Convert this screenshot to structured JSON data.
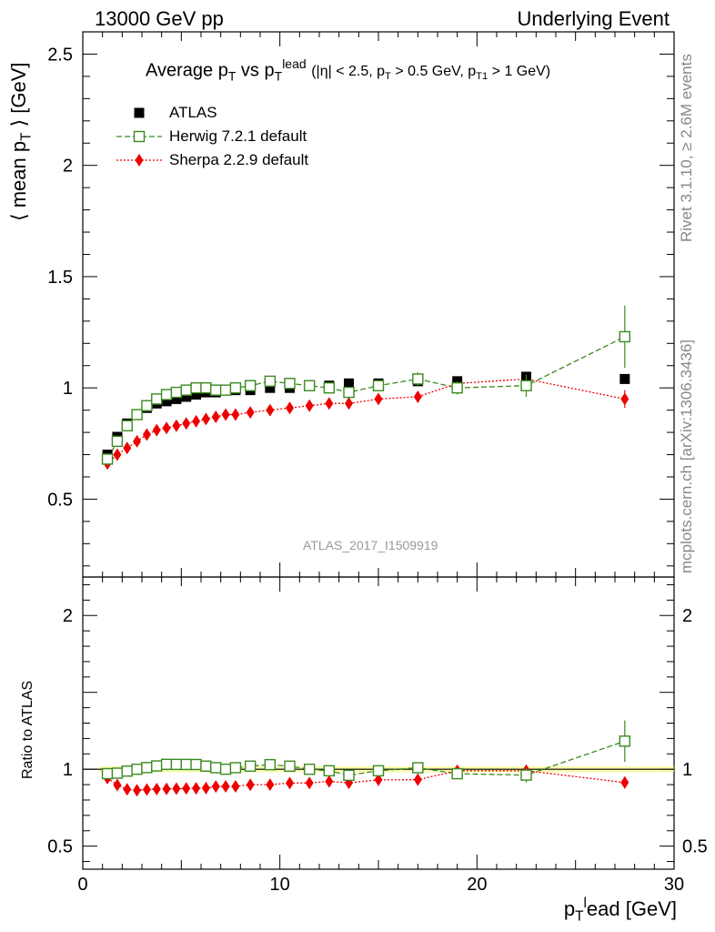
{
  "header": {
    "left": "13000 GeV pp",
    "right": "Underlying Event"
  },
  "side": {
    "rivet": "Rivet 3.1.10, ≥ 2.6M events",
    "mcplots": "mcplots.cern.ch [arXiv:1306.3436]"
  },
  "reference_label": "ATLAS_2017_I1509919",
  "colors": {
    "atlas": "#000000",
    "herwig": "#3a8a1e",
    "sherpa": "#ee0000",
    "band": "#f2f870"
  },
  "chart_data": {
    "type": "scatter",
    "title": "Average pT vs pTlead (|η| < 2.5, pT > 0.5 GeV, pT1 > 1 GeV)",
    "title_parts": {
      "main": "Average p",
      "sub1": "T",
      "vs": " vs p",
      "sub2": "T",
      "sup2": "lead",
      "cut": "(|η| < 2.5, p",
      "cut_sub1": "T",
      "cut2": " > 0.5 GeV, p",
      "cut_sub2": "T1",
      "cut3": " > 1 GeV)"
    },
    "ylabel": "⟨ mean p_T ⟩ [GeV]",
    "ylabel_parts": {
      "a": "⟨ mean p",
      "sub": "T",
      "b": " ⟩ [GeV]"
    },
    "xlabel": "p_T^lead [GeV]",
    "xlabel_parts": {
      "a": "p",
      "sub": "T",
      "sup": "l",
      "b": "ead [GeV]"
    },
    "ratio_ylabel": "Ratio to ATLAS",
    "xlim": [
      0,
      30
    ],
    "ylim": [
      0.15,
      2.6
    ],
    "ratio_ylim": [
      0.35,
      2.25
    ],
    "x_ticks": [
      "0",
      "10",
      "20",
      "30"
    ],
    "y_ticks": [
      "0.5",
      "1",
      "1.5",
      "2",
      "2.5"
    ],
    "ratio_ticks": [
      "0.5",
      "1",
      "2"
    ],
    "legend_position": "top-left",
    "series": [
      {
        "name": "ATLAS",
        "marker": "filled-square",
        "x": [
          1.25,
          1.75,
          2.25,
          2.75,
          3.25,
          3.75,
          4.25,
          4.75,
          5.25,
          5.75,
          6.25,
          6.75,
          7.25,
          7.75,
          8.5,
          9.5,
          10.5,
          11.5,
          12.5,
          13.5,
          15,
          17,
          19,
          22.5,
          27.5
        ],
        "y": [
          0.7,
          0.78,
          0.84,
          0.88,
          0.91,
          0.93,
          0.94,
          0.95,
          0.96,
          0.97,
          0.98,
          0.98,
          0.99,
          0.99,
          0.99,
          1.0,
          1.0,
          1.01,
          1.01,
          1.02,
          1.02,
          1.03,
          1.03,
          1.05,
          1.04
        ]
      },
      {
        "name": "Herwig 7.2.1 default",
        "marker": "open-square",
        "x": [
          1.25,
          1.75,
          2.25,
          2.75,
          3.25,
          3.75,
          4.25,
          4.75,
          5.25,
          5.75,
          6.25,
          6.75,
          7.25,
          7.75,
          8.5,
          9.5,
          10.5,
          11.5,
          12.5,
          13.5,
          15,
          17,
          19,
          22.5,
          27.5
        ],
        "y": [
          0.68,
          0.76,
          0.83,
          0.88,
          0.92,
          0.95,
          0.97,
          0.98,
          0.99,
          1.0,
          1.0,
          0.99,
          0.99,
          1.0,
          1.01,
          1.03,
          1.02,
          1.01,
          1.0,
          0.98,
          1.01,
          1.04,
          1.0,
          1.01,
          1.23
        ],
        "err": [
          0.01,
          0.01,
          0.01,
          0.01,
          0.01,
          0.01,
          0.01,
          0.01,
          0.01,
          0.01,
          0.01,
          0.01,
          0.01,
          0.01,
          0.01,
          0.01,
          0.01,
          0.01,
          0.01,
          0.02,
          0.02,
          0.03,
          0.03,
          0.05,
          0.14
        ]
      },
      {
        "name": "Sherpa 2.2.9 default",
        "marker": "filled-diamond",
        "x": [
          1.25,
          1.75,
          2.25,
          2.75,
          3.25,
          3.75,
          4.25,
          4.75,
          5.25,
          5.75,
          6.25,
          6.75,
          7.25,
          7.75,
          8.5,
          9.5,
          10.5,
          11.5,
          12.5,
          13.5,
          15,
          17,
          19,
          22.5,
          27.5
        ],
        "y": [
          0.66,
          0.7,
          0.73,
          0.76,
          0.79,
          0.81,
          0.82,
          0.83,
          0.84,
          0.85,
          0.86,
          0.87,
          0.88,
          0.88,
          0.89,
          0.9,
          0.91,
          0.92,
          0.93,
          0.93,
          0.95,
          0.96,
          1.02,
          1.04,
          0.95
        ],
        "err": [
          0.01,
          0.01,
          0.01,
          0.01,
          0.01,
          0.01,
          0.01,
          0.01,
          0.01,
          0.01,
          0.01,
          0.01,
          0.01,
          0.01,
          0.01,
          0.01,
          0.01,
          0.01,
          0.01,
          0.01,
          0.01,
          0.02,
          0.02,
          0.03,
          0.04
        ]
      }
    ]
  }
}
